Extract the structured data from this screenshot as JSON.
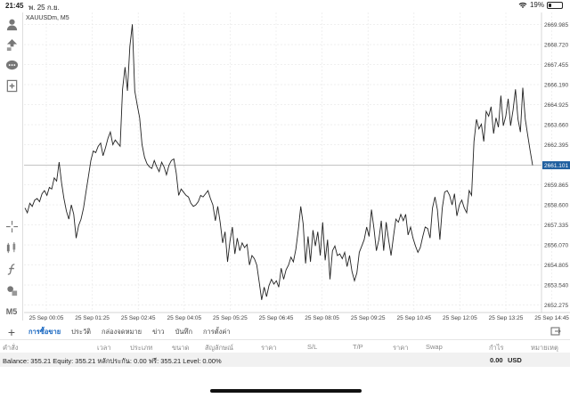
{
  "status_bar": {
    "time": "21:45",
    "date": "พ. 25 ก.ย.",
    "battery": "19%",
    "battery_level": 0.19
  },
  "chart": {
    "symbol_label": "XAUUSDm, M5",
    "current_price": "2661.101",
    "line_color": "#222222",
    "price_tag_color": "#1f5f9f"
  },
  "chart_data": {
    "type": "line",
    "title": "XAUUSDm, M5",
    "xlabel": "",
    "ylabel": "",
    "ylim": [
      2651.8,
      2670.75
    ],
    "y_ticks": [
      "2669.985",
      "2668.720",
      "2667.455",
      "2666.190",
      "2664.925",
      "2663.660",
      "2662.395",
      "2659.865",
      "2658.600",
      "2657.335",
      "2656.070",
      "2654.805",
      "2653.540",
      "2652.275"
    ],
    "x_ticks": [
      "25 Sep 00:05",
      "25 Sep 01:25",
      "25 Sep 02:45",
      "25 Sep 04:05",
      "25 Sep 05:25",
      "25 Sep 06:45",
      "25 Sep 08:05",
      "25 Sep 09:25",
      "25 Sep 10:45",
      "25 Sep 12:05",
      "25 Sep 13:25",
      "25 Sep 14:45"
    ],
    "current_price": 2661.101,
    "series": [
      {
        "values": [
          2658.4,
          2658.1,
          2658.7,
          2658.5,
          2658.9,
          2659.0,
          2658.8,
          2659.3,
          2659.5,
          2659.2,
          2659.7,
          2659.6,
          2660.3,
          2660.1,
          2661.3,
          2660.0,
          2659.0,
          2658.2,
          2657.7,
          2658.6,
          2658.0,
          2656.5,
          2657.3,
          2657.7,
          2658.4,
          2659.4,
          2660.4,
          2661.4,
          2662.0,
          2661.9,
          2662.3,
          2662.5,
          2661.7,
          2662.2,
          2662.8,
          2663.2,
          2662.4,
          2662.7,
          2662.5,
          2662.3,
          2665.9,
          2667.3,
          2665.8,
          2668.6,
          2670.0,
          2665.8,
          2664.9,
          2664.1,
          2662.4,
          2661.6,
          2661.2,
          2661.0,
          2660.9,
          2661.4,
          2661.0,
          2660.7,
          2661.3,
          2661.0,
          2660.5,
          2661.1,
          2661.4,
          2661.5,
          2660.6,
          2659.2,
          2659.6,
          2659.4,
          2659.2,
          2659.1,
          2658.7,
          2658.5,
          2658.6,
          2658.8,
          2659.2,
          2659.1,
          2659.3,
          2659.5,
          2659.0,
          2658.6,
          2657.6,
          2658.5,
          2657.5,
          2656.2,
          2656.9,
          2655.0,
          2656.3,
          2657.2,
          2655.5,
          2656.5,
          2655.7,
          2656.2,
          2655.9,
          2656.1,
          2654.8,
          2655.4,
          2655.2,
          2654.8,
          2653.7,
          2652.6,
          2653.4,
          2652.8,
          2653.5,
          2653.9,
          2653.6,
          2653.8,
          2653.4,
          2654.6,
          2653.9,
          2654.5,
          2654.8,
          2655.3,
          2655.0,
          2655.8,
          2657.0,
          2658.5,
          2657.4,
          2654.9,
          2656.6,
          2655.0,
          2657.0,
          2656.0,
          2656.9,
          2655.4,
          2657.5,
          2655.1,
          2656.4,
          2653.9,
          2655.7,
          2656.0,
          2655.4,
          2655.5,
          2655.2,
          2655.6,
          2654.7,
          2655.4,
          2654.4,
          2653.8,
          2654.3,
          2655.6,
          2656.0,
          2656.4,
          2657.2,
          2656.6,
          2658.3,
          2657.1,
          2655.7,
          2656.4,
          2657.6,
          2655.7,
          2657.5,
          2656.4,
          2655.4,
          2656.6,
          2657.7,
          2657.5,
          2658.0,
          2657.6,
          2658.0,
          2656.7,
          2657.2,
          2656.5,
          2656.0,
          2655.6,
          2655.9,
          2656.6,
          2657.2,
          2657.1,
          2656.5,
          2658.4,
          2659.1,
          2658.3,
          2656.4,
          2658.4,
          2659.4,
          2659.5,
          2659.2,
          2658.6,
          2659.3,
          2657.9,
          2658.6,
          2658.9,
          2658.4,
          2658.1,
          2659.5,
          2659.2,
          2662.6,
          2664.0,
          2663.4,
          2663.7,
          2662.6,
          2664.5,
          2664.2,
          2664.8,
          2663.1,
          2664.1,
          2663.5,
          2665.5,
          2663.6,
          2664.2,
          2665.3,
          2663.6,
          2664.6,
          2665.9,
          2664.0,
          2663.2,
          2666.0,
          2664.0,
          2663.0,
          2662.0,
          2661.1
        ]
      }
    ]
  },
  "tabs": {
    "items": [
      "การซื้อขาย",
      "ประวัติ",
      "กล่องจดหมาย",
      "ข่าว",
      "บันทึก",
      "การตั้งค่า"
    ],
    "active_index": 0
  },
  "table_header": {
    "columns": [
      "คำสั่ง",
      "เวลา",
      "ประเภท",
      "ขนาด",
      "สัญลักษณ์",
      "ราคา",
      "S/L",
      "T/P",
      "ราคา",
      "Swap",
      "กำไร",
      "หมายเหตุ"
    ]
  },
  "summary": {
    "line": "Balance: 355.21  Equity: 355.21  หลักประกัน: 0.00  ฟรี: 355.21  Level: 0.00%",
    "profit": "0.00",
    "currency": "USD"
  },
  "toolbar": {
    "icons": [
      "account-icon",
      "trade-icon",
      "chat-icon",
      "new-chart-icon",
      "crosshair-icon",
      "indicators-icon",
      "function-icon",
      "objects-icon",
      "timeframe-icon"
    ],
    "timeframe": "M5"
  }
}
